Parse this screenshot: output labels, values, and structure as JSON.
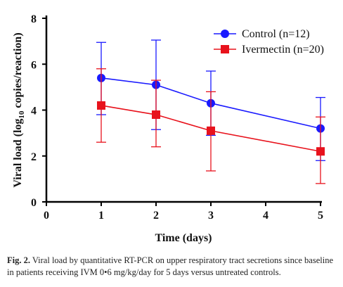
{
  "chart_data": {
    "type": "line",
    "x": [
      1,
      2,
      3,
      5
    ],
    "xlim": [
      0,
      5
    ],
    "ylim": [
      0,
      8
    ],
    "x_ticks": [
      "0",
      "1",
      "2",
      "3",
      "4",
      "5"
    ],
    "y_ticks": [
      "0",
      "2",
      "4",
      "6",
      "8"
    ],
    "xlabel": "Time (days)",
    "ylabel_main": "Viral load (log",
    "ylabel_sub": "10",
    "ylabel_tail": " copies/reaction)",
    "legend_position": "top-right",
    "series": [
      {
        "name": "Control (n=12)",
        "color": "#1a1aff",
        "marker": "circle",
        "values": [
          5.4,
          5.1,
          4.3,
          3.2
        ],
        "err_low": [
          3.8,
          3.15,
          2.9,
          1.8
        ],
        "err_high": [
          6.95,
          7.05,
          5.7,
          4.55
        ]
      },
      {
        "name": "Ivermectin (n=20)",
        "color": "#e8121c",
        "marker": "square",
        "values": [
          4.2,
          3.8,
          3.1,
          2.2
        ],
        "err_low": [
          2.6,
          2.4,
          1.35,
          0.8
        ],
        "err_high": [
          5.8,
          5.3,
          4.8,
          3.7
        ]
      }
    ]
  },
  "caption": {
    "label": "Fig. 2.",
    "text": " Viral load by quantitative RT-PCR on upper respiratory tract secretions since baseline in patients receiving IVM 0•6 mg/kg/day for 5 days versus untreated controls."
  }
}
